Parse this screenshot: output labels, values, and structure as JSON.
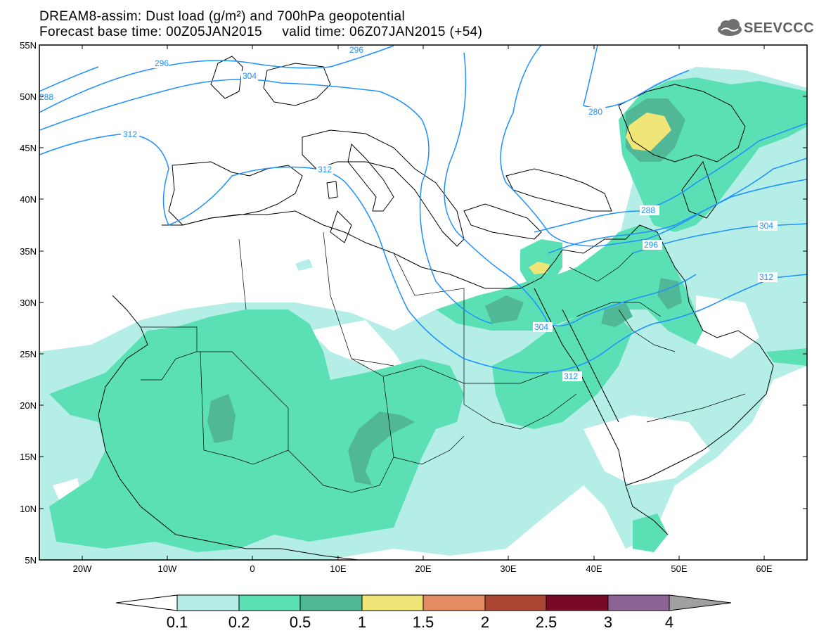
{
  "header": {
    "title_line1": "DREAM8-assim: Dust load (g/m²) and 700hPa geopotential",
    "title_line2": "Forecast base time: 00Z05JAN2015     valid time: 06Z07JAN2015 (+54)",
    "logo_text": "SEEVCCC",
    "logo_icon": "cloud-icon"
  },
  "map": {
    "lon_range": [
      -25,
      65
    ],
    "lat_range": [
      5,
      55
    ],
    "lat_labels": [
      "55N",
      "50N",
      "45N",
      "40N",
      "35N",
      "30N",
      "25N",
      "20N",
      "15N",
      "10N",
      "5N"
    ],
    "lon_labels": [
      "20W",
      "10W",
      "0",
      "10E",
      "20E",
      "30E",
      "40E",
      "50E",
      "60E"
    ],
    "contour_labels": [
      "296",
      "304",
      "288",
      "312",
      "312",
      "280",
      "288",
      "296",
      "304",
      "312",
      "304",
      "312",
      "296"
    ],
    "contour_color": "#1e90ff"
  },
  "colorbar": {
    "labels": [
      "0.1",
      "0.2",
      "0.5",
      "1",
      "1.5",
      "2",
      "2.5",
      "3",
      "4"
    ],
    "colors": [
      "#ffffff",
      "#b4eee6",
      "#5ae0b4",
      "#50b896",
      "#f0e678",
      "#e68c64",
      "#aa4632",
      "#780a28",
      "#8c6496",
      "#a0a0a0"
    ]
  }
}
